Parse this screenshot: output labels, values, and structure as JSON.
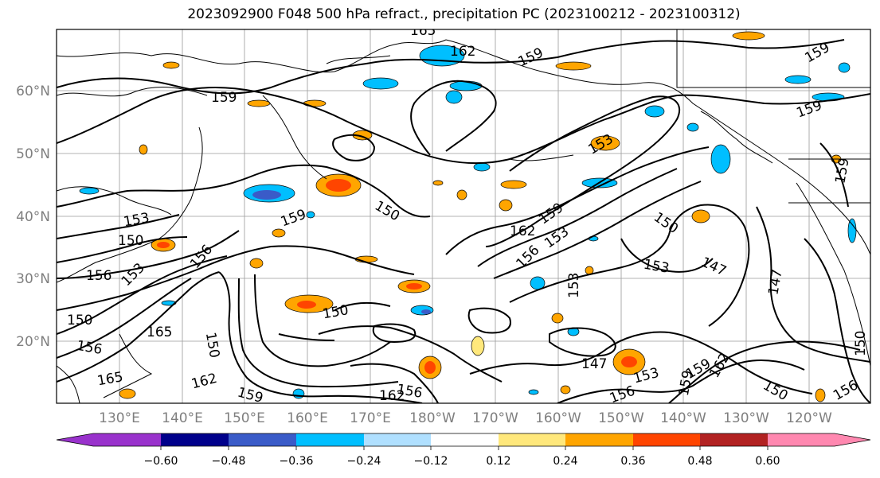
{
  "title": "2023092900 F048 500 hPa refract., precipitation PC (2023100212 - 2023100312)",
  "map": {
    "lat_labels": [
      "60°N",
      "50°N",
      "40°N",
      "30°N",
      "20°N"
    ],
    "lon_labels": [
      "130°E",
      "140°E",
      "150°E",
      "160°E",
      "170°E",
      "180°W",
      "170°W",
      "160°W",
      "150°W",
      "140°W",
      "130°W",
      "120°W"
    ],
    "contour_labels": [
      "165",
      "162",
      "159",
      "159",
      "153",
      "159",
      "159",
      "159",
      "150",
      "153",
      "150",
      "156",
      "156",
      "153",
      "159",
      "162",
      "153",
      "156",
      "150",
      "153",
      "147",
      "147",
      "153",
      "150",
      "165",
      "150",
      "156",
      "150",
      "165",
      "162",
      "159",
      "162",
      "156",
      "147",
      "153",
      "156",
      "159",
      "162",
      "159",
      "150",
      "156",
      "150",
      "159"
    ]
  },
  "colorbar": {
    "tick_labels": [
      "−0.60",
      "−0.48",
      "−0.36",
      "−0.24",
      "−0.12",
      "0.12",
      "0.24",
      "0.36",
      "0.48",
      "0.60"
    ],
    "colors": [
      "#9932CC",
      "#00008B",
      "#3A5BC8",
      "#00BFFF",
      "#B0E0FF",
      "#FFFFFF",
      "#FFE87C",
      "#FFA500",
      "#FF4500",
      "#B22222",
      "#FF88B0"
    ]
  }
}
